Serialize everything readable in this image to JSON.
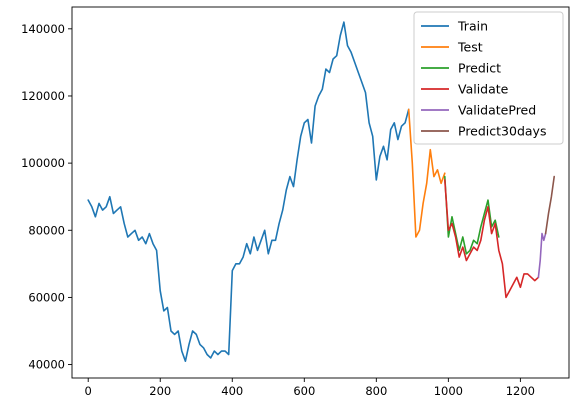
{
  "chart_data": {
    "type": "line",
    "title": "",
    "xlabel": "",
    "ylabel": "",
    "xlim": [
      -45,
      1335
    ],
    "ylim": [
      36000,
      146500
    ],
    "xticks": [
      0,
      200,
      400,
      600,
      800,
      1000,
      1200
    ],
    "yticks": [
      40000,
      60000,
      80000,
      100000,
      120000,
      140000
    ],
    "grid": false,
    "legend_position": "top-right",
    "series": [
      {
        "name": "Train",
        "color": "#1f77b4",
        "x": [
          0,
          10,
          20,
          30,
          40,
          50,
          60,
          70,
          80,
          90,
          100,
          110,
          120,
          130,
          140,
          150,
          160,
          170,
          180,
          190,
          200,
          210,
          220,
          230,
          240,
          250,
          260,
          270,
          280,
          290,
          300,
          310,
          320,
          330,
          340,
          350,
          360,
          370,
          380,
          390,
          400,
          410,
          420,
          430,
          440,
          450,
          460,
          470,
          480,
          490,
          500,
          510,
          520,
          530,
          540,
          550,
          560,
          570,
          580,
          590,
          600,
          610,
          620,
          630,
          640,
          650,
          660,
          670,
          680,
          690,
          700,
          710,
          720,
          730,
          740,
          750,
          760,
          770,
          780,
          790,
          800,
          810,
          820,
          830,
          840,
          850,
          860,
          870,
          880,
          890
        ],
        "values": [
          89000,
          87000,
          84000,
          88000,
          86000,
          87000,
          90000,
          85000,
          86000,
          87000,
          82000,
          78000,
          79000,
          80000,
          77000,
          78000,
          76000,
          79000,
          76000,
          74000,
          62000,
          56000,
          57000,
          50000,
          49000,
          50000,
          44000,
          41000,
          46000,
          50000,
          49000,
          46000,
          45000,
          43000,
          42000,
          44000,
          43000,
          44000,
          44000,
          43000,
          68000,
          70000,
          70000,
          72000,
          76000,
          73000,
          78000,
          74000,
          77000,
          80000,
          73000,
          77000,
          77000,
          82000,
          86000,
          92000,
          96000,
          93000,
          101000,
          108000,
          112000,
          113000,
          106000,
          117000,
          120000,
          122000,
          128000,
          127000,
          131000,
          132000,
          138000,
          142000,
          135000,
          133000,
          130000,
          127000,
          124000,
          121000,
          112000,
          108000,
          95000,
          102000,
          105000,
          101000,
          110000,
          112000,
          107000,
          111000,
          112000,
          116000
        ]
      },
      {
        "name": "Test",
        "color": "#ff7f0e",
        "x": [
          890,
          900,
          910,
          920,
          930,
          940,
          950,
          960,
          970,
          980,
          990
        ],
        "values": [
          116000,
          100000,
          78000,
          80000,
          88000,
          94000,
          104000,
          96000,
          98000,
          94000,
          97000
        ]
      },
      {
        "name": "Predict",
        "color": "#2ca02c",
        "x": [
          990,
          1000,
          1010,
          1020,
          1030,
          1040,
          1050,
          1060,
          1070,
          1080,
          1090,
          1100,
          1110,
          1120,
          1130,
          1140
        ],
        "values": [
          96000,
          78000,
          84000,
          79000,
          74000,
          78000,
          73000,
          74000,
          77000,
          76000,
          81000,
          85000,
          89000,
          81000,
          83000,
          78000
        ]
      },
      {
        "name": "Validate",
        "color": "#d62728",
        "x": [
          990,
          1000,
          1010,
          1020,
          1030,
          1040,
          1050,
          1060,
          1070,
          1080,
          1090,
          1100,
          1110,
          1120,
          1130,
          1140,
          1150,
          1160,
          1170,
          1180,
          1190,
          1200,
          1210,
          1220,
          1230,
          1240,
          1250
        ],
        "values": [
          95000,
          80000,
          82000,
          78000,
          72000,
          75000,
          71000,
          73000,
          75000,
          74000,
          77000,
          83000,
          87000,
          79000,
          82000,
          74000,
          70000,
          60000,
          62000,
          64000,
          66000,
          63000,
          67000,
          67000,
          66000,
          65000,
          66000
        ]
      },
      {
        "name": "ValidatePred",
        "color": "#9467bd",
        "x": [
          1250,
          1255,
          1260,
          1265,
          1270
        ],
        "values": [
          66000,
          71000,
          79000,
          77000,
          79000
        ]
      },
      {
        "name": "Predict30days",
        "color": "#8c564b",
        "x": [
          1270,
          1278,
          1286,
          1294
        ],
        "values": [
          79000,
          85000,
          90000,
          96000
        ]
      }
    ]
  }
}
